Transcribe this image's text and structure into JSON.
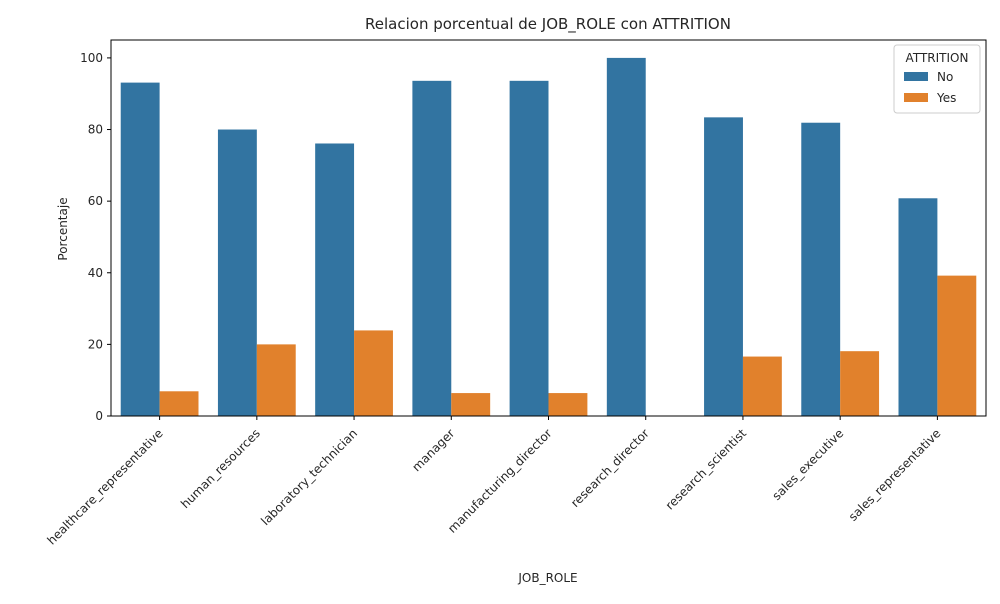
{
  "chart_data": {
    "type": "bar",
    "title": "Relacion porcentual de JOB_ROLE con ATTRITION",
    "xlabel": "JOB_ROLE",
    "ylabel": "Porcentaje",
    "ylim": [
      0,
      105
    ],
    "yticks": [
      0,
      20,
      40,
      60,
      80,
      100
    ],
    "grid": false,
    "legend": {
      "title": "ATTRITION",
      "placement": "top-right"
    },
    "categories": [
      "healthcare_representative",
      "human_resources",
      "laboratory_technician",
      "manager",
      "manufacturing_director",
      "research_director",
      "research_scientist",
      "sales_executive",
      "sales_representative"
    ],
    "series": [
      {
        "name": "No",
        "color": "#3274a1",
        "values": [
          93.1,
          80.0,
          76.1,
          93.6,
          93.6,
          100.0,
          83.4,
          81.9,
          60.8
        ]
      },
      {
        "name": "Yes",
        "color": "#e1812c",
        "values": [
          6.9,
          20.0,
          23.9,
          6.4,
          6.4,
          0.0,
          16.6,
          18.1,
          39.2
        ]
      }
    ]
  }
}
